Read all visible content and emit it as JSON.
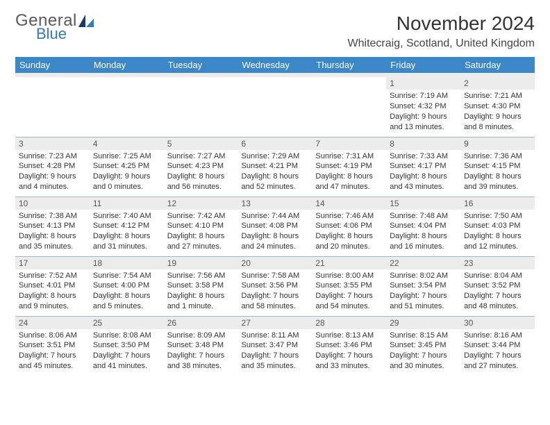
{
  "brand": {
    "line1": "General",
    "line2": "Blue",
    "line1_color": "#5a5a5a",
    "line2_color": "#2f7ac0"
  },
  "title": "November 2024",
  "location": "Whitecraig, Scotland, United Kingdom",
  "style": {
    "header_bg": "#3b87c8",
    "header_fg": "#ffffff",
    "daynum_bg": "#ececec",
    "border_color": "#9bb8cc",
    "title_fontsize": 28,
    "location_fontsize": 16,
    "th_fontsize": 13,
    "body_fontsize": 11
  },
  "day_names": [
    "Sunday",
    "Monday",
    "Tuesday",
    "Wednesday",
    "Thursday",
    "Friday",
    "Saturday"
  ],
  "weeks": [
    [
      null,
      null,
      null,
      null,
      null,
      {
        "n": "1",
        "sr": "Sunrise: 7:19 AM",
        "ss": "Sunset: 4:32 PM",
        "d1": "Daylight: 9 hours",
        "d2": "and 13 minutes."
      },
      {
        "n": "2",
        "sr": "Sunrise: 7:21 AM",
        "ss": "Sunset: 4:30 PM",
        "d1": "Daylight: 9 hours",
        "d2": "and 8 minutes."
      }
    ],
    [
      {
        "n": "3",
        "sr": "Sunrise: 7:23 AM",
        "ss": "Sunset: 4:28 PM",
        "d1": "Daylight: 9 hours",
        "d2": "and 4 minutes."
      },
      {
        "n": "4",
        "sr": "Sunrise: 7:25 AM",
        "ss": "Sunset: 4:25 PM",
        "d1": "Daylight: 9 hours",
        "d2": "and 0 minutes."
      },
      {
        "n": "5",
        "sr": "Sunrise: 7:27 AM",
        "ss": "Sunset: 4:23 PM",
        "d1": "Daylight: 8 hours",
        "d2": "and 56 minutes."
      },
      {
        "n": "6",
        "sr": "Sunrise: 7:29 AM",
        "ss": "Sunset: 4:21 PM",
        "d1": "Daylight: 8 hours",
        "d2": "and 52 minutes."
      },
      {
        "n": "7",
        "sr": "Sunrise: 7:31 AM",
        "ss": "Sunset: 4:19 PM",
        "d1": "Daylight: 8 hours",
        "d2": "and 47 minutes."
      },
      {
        "n": "8",
        "sr": "Sunrise: 7:33 AM",
        "ss": "Sunset: 4:17 PM",
        "d1": "Daylight: 8 hours",
        "d2": "and 43 minutes."
      },
      {
        "n": "9",
        "sr": "Sunrise: 7:36 AM",
        "ss": "Sunset: 4:15 PM",
        "d1": "Daylight: 8 hours",
        "d2": "and 39 minutes."
      }
    ],
    [
      {
        "n": "10",
        "sr": "Sunrise: 7:38 AM",
        "ss": "Sunset: 4:13 PM",
        "d1": "Daylight: 8 hours",
        "d2": "and 35 minutes."
      },
      {
        "n": "11",
        "sr": "Sunrise: 7:40 AM",
        "ss": "Sunset: 4:12 PM",
        "d1": "Daylight: 8 hours",
        "d2": "and 31 minutes."
      },
      {
        "n": "12",
        "sr": "Sunrise: 7:42 AM",
        "ss": "Sunset: 4:10 PM",
        "d1": "Daylight: 8 hours",
        "d2": "and 27 minutes."
      },
      {
        "n": "13",
        "sr": "Sunrise: 7:44 AM",
        "ss": "Sunset: 4:08 PM",
        "d1": "Daylight: 8 hours",
        "d2": "and 24 minutes."
      },
      {
        "n": "14",
        "sr": "Sunrise: 7:46 AM",
        "ss": "Sunset: 4:06 PM",
        "d1": "Daylight: 8 hours",
        "d2": "and 20 minutes."
      },
      {
        "n": "15",
        "sr": "Sunrise: 7:48 AM",
        "ss": "Sunset: 4:04 PM",
        "d1": "Daylight: 8 hours",
        "d2": "and 16 minutes."
      },
      {
        "n": "16",
        "sr": "Sunrise: 7:50 AM",
        "ss": "Sunset: 4:03 PM",
        "d1": "Daylight: 8 hours",
        "d2": "and 12 minutes."
      }
    ],
    [
      {
        "n": "17",
        "sr": "Sunrise: 7:52 AM",
        "ss": "Sunset: 4:01 PM",
        "d1": "Daylight: 8 hours",
        "d2": "and 9 minutes."
      },
      {
        "n": "18",
        "sr": "Sunrise: 7:54 AM",
        "ss": "Sunset: 4:00 PM",
        "d1": "Daylight: 8 hours",
        "d2": "and 5 minutes."
      },
      {
        "n": "19",
        "sr": "Sunrise: 7:56 AM",
        "ss": "Sunset: 3:58 PM",
        "d1": "Daylight: 8 hours",
        "d2": "and 1 minute."
      },
      {
        "n": "20",
        "sr": "Sunrise: 7:58 AM",
        "ss": "Sunset: 3:56 PM",
        "d1": "Daylight: 7 hours",
        "d2": "and 58 minutes."
      },
      {
        "n": "21",
        "sr": "Sunrise: 8:00 AM",
        "ss": "Sunset: 3:55 PM",
        "d1": "Daylight: 7 hours",
        "d2": "and 54 minutes."
      },
      {
        "n": "22",
        "sr": "Sunrise: 8:02 AM",
        "ss": "Sunset: 3:54 PM",
        "d1": "Daylight: 7 hours",
        "d2": "and 51 minutes."
      },
      {
        "n": "23",
        "sr": "Sunrise: 8:04 AM",
        "ss": "Sunset: 3:52 PM",
        "d1": "Daylight: 7 hours",
        "d2": "and 48 minutes."
      }
    ],
    [
      {
        "n": "24",
        "sr": "Sunrise: 8:06 AM",
        "ss": "Sunset: 3:51 PM",
        "d1": "Daylight: 7 hours",
        "d2": "and 45 minutes."
      },
      {
        "n": "25",
        "sr": "Sunrise: 8:08 AM",
        "ss": "Sunset: 3:50 PM",
        "d1": "Daylight: 7 hours",
        "d2": "and 41 minutes."
      },
      {
        "n": "26",
        "sr": "Sunrise: 8:09 AM",
        "ss": "Sunset: 3:48 PM",
        "d1": "Daylight: 7 hours",
        "d2": "and 38 minutes."
      },
      {
        "n": "27",
        "sr": "Sunrise: 8:11 AM",
        "ss": "Sunset: 3:47 PM",
        "d1": "Daylight: 7 hours",
        "d2": "and 35 minutes."
      },
      {
        "n": "28",
        "sr": "Sunrise: 8:13 AM",
        "ss": "Sunset: 3:46 PM",
        "d1": "Daylight: 7 hours",
        "d2": "and 33 minutes."
      },
      {
        "n": "29",
        "sr": "Sunrise: 8:15 AM",
        "ss": "Sunset: 3:45 PM",
        "d1": "Daylight: 7 hours",
        "d2": "and 30 minutes."
      },
      {
        "n": "30",
        "sr": "Sunrise: 8:16 AM",
        "ss": "Sunset: 3:44 PM",
        "d1": "Daylight: 7 hours",
        "d2": "and 27 minutes."
      }
    ]
  ]
}
